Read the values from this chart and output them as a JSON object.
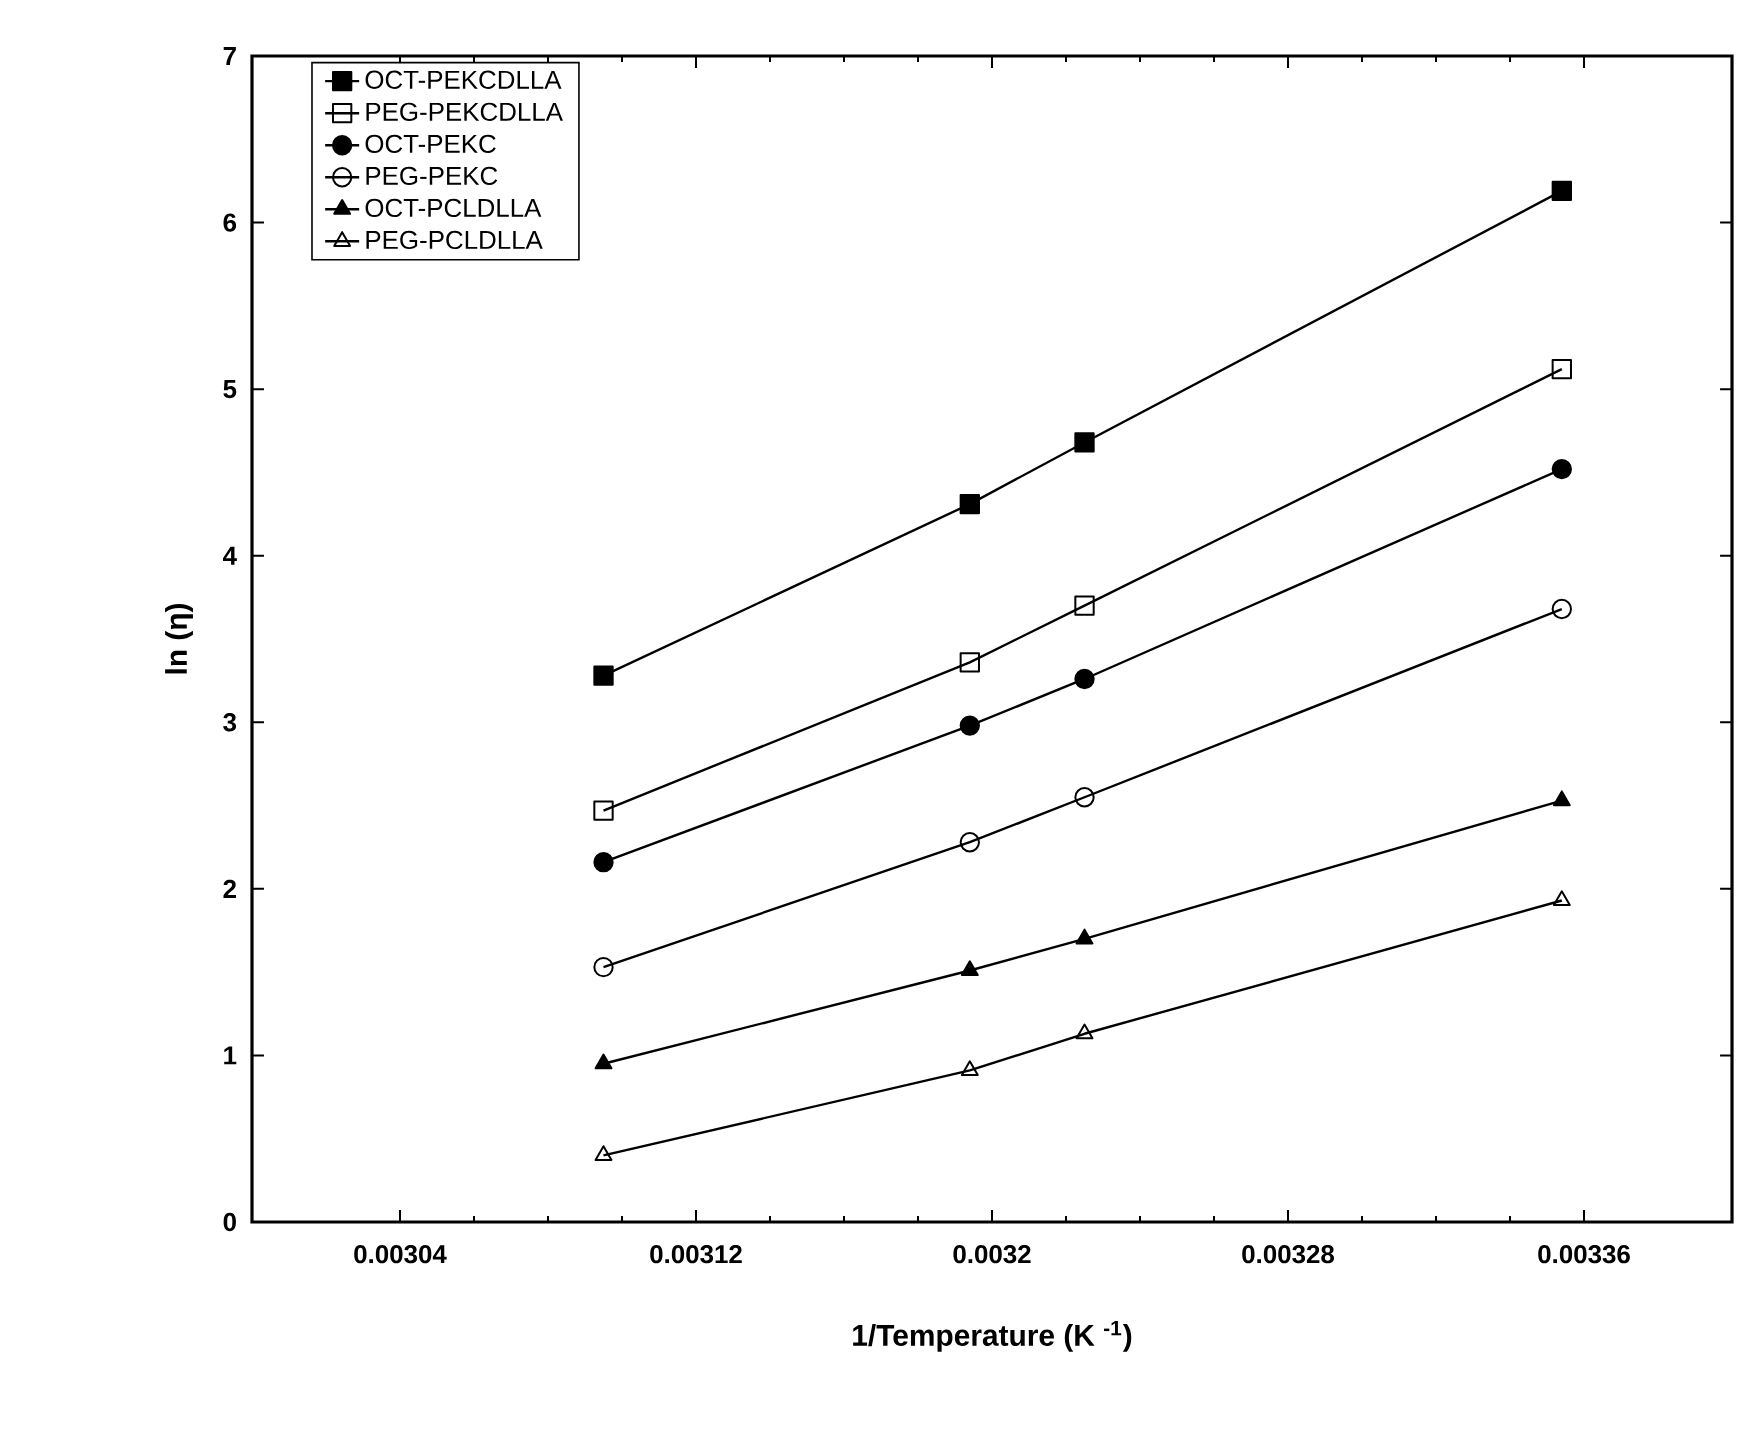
{
  "chart_data": {
    "type": "line",
    "xlabel": "1/Temperature (K $^{-1}$)",
    "ylabel": "ln (η)",
    "x": [
      0.003095,
      0.003194,
      0.003225,
      0.003354
    ],
    "xlim": [
      0.003,
      0.0034
    ],
    "xticks": [
      0.00304,
      0.00312,
      0.0032,
      0.00328,
      0.00336
    ],
    "ylim": [
      0,
      7
    ],
    "yticks": [
      0,
      1,
      2,
      3,
      4,
      5,
      6,
      7
    ],
    "legend": "top left",
    "grid": false,
    "series": [
      {
        "name": "OCT-PEKCDLLA",
        "color": "#000000",
        "marker": "square",
        "values": [
          3.28,
          4.31,
          4.68,
          6.19
        ]
      },
      {
        "name": "PEG-PEKCDLLA",
        "color": "#000000",
        "marker": "square-open",
        "values": [
          2.47,
          3.36,
          3.7,
          5.12
        ]
      },
      {
        "name": "OCT-PEKC",
        "color": "#000000",
        "marker": "circle",
        "values": [
          2.16,
          2.98,
          3.26,
          4.52
        ]
      },
      {
        "name": "PEG-PEKC",
        "color": "#000000",
        "marker": "circle-open",
        "values": [
          1.53,
          2.28,
          2.55,
          3.68
        ]
      },
      {
        "name": "OCT-PCLDLLA",
        "color": "#000000",
        "marker": "triangle",
        "values": [
          0.95,
          1.51,
          1.7,
          2.53
        ]
      },
      {
        "name": "PEG-PCLDLLA",
        "color": "#000000",
        "marker": "triangle-open",
        "values": [
          0.4,
          0.91,
          1.13,
          1.93
        ]
      }
    ]
  }
}
